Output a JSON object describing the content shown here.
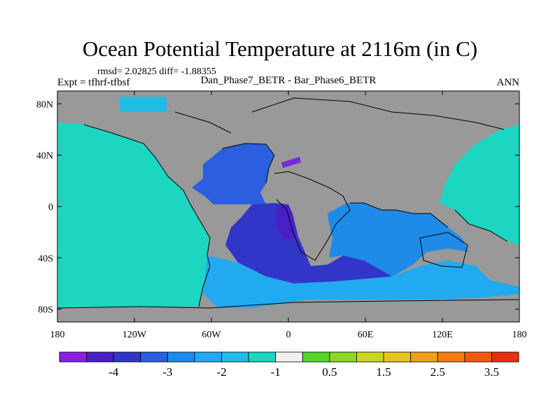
{
  "title": "Ocean Potential Temperature at 2116m (in C)",
  "stats": "rmsd= 2.02825  diff= -1.88355",
  "expt": "Expt = tfhrf-tfbsf",
  "subtitle": "Dan_Phase7_BETR - Bar_Phase6_BETR",
  "season": "ANN",
  "map": {
    "projection": "cylindrical-equidistant",
    "lon_range": [
      -180,
      180
    ],
    "lat_range": [
      -90,
      90
    ],
    "land_color": "#999999",
    "x_ticks": [
      {
        "lon": -180,
        "label": "180"
      },
      {
        "lon": -120,
        "label": "120W"
      },
      {
        "lon": -60,
        "label": "60W"
      },
      {
        "lon": 0,
        "label": "0"
      },
      {
        "lon": 60,
        "label": "60E"
      },
      {
        "lon": 120,
        "label": "120E"
      },
      {
        "lon": 180,
        "label": "180"
      }
    ],
    "y_ticks": [
      {
        "lat": 80,
        "label": "80N"
      },
      {
        "lat": 40,
        "label": "40N"
      },
      {
        "lat": 0,
        "label": "0"
      },
      {
        "lat": -40,
        "label": "40S"
      },
      {
        "lat": -80,
        "label": "80S"
      }
    ],
    "regions": [
      {
        "name": "pacific-east",
        "level": -1,
        "color": "#1cd6c1"
      },
      {
        "name": "pacific-west",
        "level": -1,
        "color": "#1cd6c1"
      },
      {
        "name": "arctic",
        "level": -1.5,
        "color": "#22bde6"
      },
      {
        "name": "north-atlantic",
        "level": -3,
        "color": "#2b5fe0"
      },
      {
        "name": "south-atlantic",
        "level": -3.5,
        "color": "#3136c9"
      },
      {
        "name": "angola-basin",
        "level": -4,
        "color": "#4b1fc4"
      },
      {
        "name": "indian-ocean",
        "level": -2.5,
        "color": "#1e8be8"
      },
      {
        "name": "southern-ocean",
        "level": -2,
        "color": "#22aaf0"
      },
      {
        "name": "mediterranean",
        "level": -4.5,
        "color": "#7b2ad9"
      }
    ]
  },
  "colorbar": {
    "colors": [
      "#8c1fe6",
      "#4b1fc4",
      "#3136c9",
      "#2b5fe0",
      "#1e8be8",
      "#22aaf0",
      "#22bde6",
      "#1cd6c1",
      "#f0f0f0",
      "#54d62e",
      "#8cd628",
      "#c8d622",
      "#e6c41c",
      "#f0a018",
      "#f07e16",
      "#f05a14",
      "#e63012"
    ],
    "labels": [
      {
        "after_box": 1,
        "text": "-4"
      },
      {
        "after_box": 3,
        "text": "-3"
      },
      {
        "after_box": 5,
        "text": "-2"
      },
      {
        "after_box": 7,
        "text": "-1"
      },
      {
        "after_box": 9,
        "text": "0.5"
      },
      {
        "after_box": 11,
        "text": "1.5"
      },
      {
        "after_box": 13,
        "text": "2.5"
      },
      {
        "after_box": 15,
        "text": "3.5"
      }
    ]
  }
}
